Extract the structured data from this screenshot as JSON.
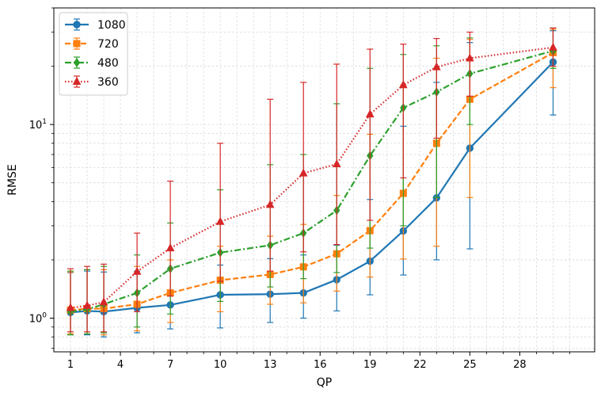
{
  "chart_data": {
    "type": "line",
    "title": "",
    "xlabel": "QP",
    "ylabel": "RMSE",
    "yscale": "log",
    "ylim": [
      0.67,
      40
    ],
    "xlim": [
      0,
      32.5
    ],
    "xticks": [
      1,
      4,
      7,
      10,
      13,
      16,
      19,
      22,
      25,
      28
    ],
    "xtick_labels": [
      "1",
      "4",
      "7",
      "10",
      "13",
      "16",
      "19",
      "22",
      "25",
      "28"
    ],
    "xticks_minor": [
      2,
      3,
      5,
      6,
      8,
      9,
      11,
      12,
      14,
      15,
      17,
      18,
      20,
      21,
      23,
      24,
      26,
      27,
      29,
      30,
      31
    ],
    "y_major_ticks": [
      1,
      10
    ],
    "y_major_labels": [
      {
        "base": "10",
        "exp": "0"
      },
      {
        "base": "10",
        "exp": "1"
      }
    ],
    "grid": true,
    "legend_position": "top-left",
    "x": [
      1,
      2,
      3,
      5,
      7,
      10,
      13,
      15,
      17,
      19,
      21,
      23,
      25,
      30
    ],
    "series": [
      {
        "name": "1080",
        "color": "#1f77b4",
        "marker": "circle",
        "linestyle": "solid",
        "values": [
          1.07,
          1.09,
          1.08,
          1.13,
          1.17,
          1.32,
          1.33,
          1.35,
          1.58,
          1.97,
          2.82,
          4.18,
          7.55,
          21.0
        ],
        "err_low": [
          0.82,
          0.82,
          0.8,
          0.84,
          0.88,
          0.89,
          0.95,
          1.0,
          1.09,
          1.32,
          1.67,
          2.0,
          2.28,
          11.2
        ],
        "err_high": [
          1.72,
          1.75,
          1.73,
          1.75,
          1.8,
          1.88,
          2.03,
          2.12,
          2.38,
          4.1,
          9.8,
          16.5,
          26.5,
          30.5
        ]
      },
      {
        "name": "720",
        "color": "#ff7f0e",
        "marker": "square",
        "linestyle": "dashed",
        "values": [
          1.1,
          1.12,
          1.12,
          1.18,
          1.35,
          1.57,
          1.68,
          1.84,
          2.15,
          2.83,
          4.41,
          8.0,
          13.5,
          23.5
        ],
        "err_low": [
          0.83,
          0.83,
          0.82,
          0.86,
          0.95,
          1.08,
          1.18,
          1.2,
          1.38,
          1.63,
          2.02,
          2.35,
          4.2,
          15.5
        ],
        "err_high": [
          1.73,
          1.78,
          1.78,
          1.85,
          2.0,
          2.35,
          2.65,
          3.05,
          4.3,
          8.9,
          16.0,
          22.0,
          27.5,
          31.0
        ]
      },
      {
        "name": "480",
        "color": "#2ca02c",
        "marker": "diamond",
        "linestyle": "dashdot",
        "values": [
          1.08,
          1.11,
          1.18,
          1.35,
          1.8,
          2.18,
          2.38,
          2.75,
          3.6,
          6.9,
          12.2,
          14.7,
          18.3,
          24.0
        ],
        "err_low": [
          0.82,
          0.83,
          0.84,
          0.9,
          1.05,
          1.22,
          1.45,
          1.6,
          1.72,
          2.3,
          3.0,
          4.2,
          10.0,
          19.5
        ],
        "err_high": [
          1.75,
          1.78,
          1.85,
          2.12,
          3.1,
          4.6,
          6.2,
          7.0,
          12.8,
          19.5,
          23.0,
          25.5,
          28.0,
          31.5
        ]
      },
      {
        "name": "360",
        "color": "#d62728",
        "marker": "triangle",
        "linestyle": "dotted",
        "values": [
          1.13,
          1.16,
          1.21,
          1.74,
          2.3,
          3.15,
          3.85,
          5.6,
          6.25,
          11.3,
          16.0,
          19.8,
          22.0,
          25.0
        ],
        "err_low": [
          0.85,
          0.85,
          0.85,
          1.08,
          1.3,
          1.55,
          1.75,
          2.2,
          2.4,
          3.2,
          5.3,
          8.5,
          14.0,
          20.0
        ],
        "err_high": [
          1.8,
          1.85,
          1.9,
          2.75,
          5.1,
          8.0,
          13.5,
          16.5,
          20.5,
          24.5,
          26.0,
          27.8,
          30.0,
          31.5
        ]
      }
    ]
  }
}
